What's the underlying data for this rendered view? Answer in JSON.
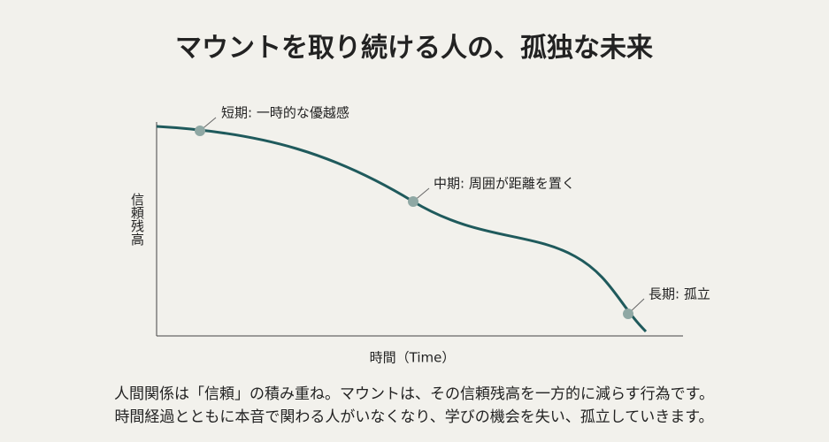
{
  "title": "マウントを取り続ける人の、孤独な未来",
  "y_axis_label": "信頼残高",
  "x_axis_label": "時間（Time）",
  "annotations": [
    "短期: 一時的な優越感",
    "中期: 周囲が距離を置く",
    "長期: 孤立"
  ],
  "description": [
    "人間関係は「信頼」の積み重ね。マウントは、その信頼残高を一方的に減らす行為です。",
    "時間経過とともに本音で関わる人がいなくなり、学びの機会を失い、孤立していきます。"
  ]
}
